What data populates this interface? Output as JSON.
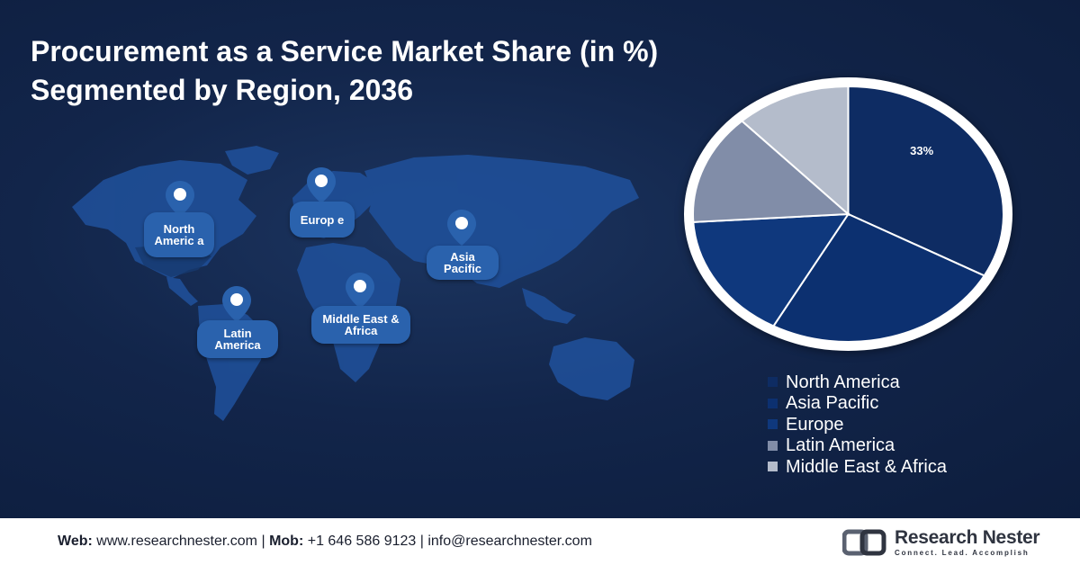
{
  "header": {
    "title_line1": "Procurement as a Service Market Share (in %)",
    "title_line2": "Segmented by Region, 2036"
  },
  "map": {
    "regions": [
      {
        "id": "north-america",
        "label": "North Americ a"
      },
      {
        "id": "europe",
        "label": "Europ e"
      },
      {
        "id": "asia-pacific",
        "label": "Asia Pacific"
      },
      {
        "id": "latin-america",
        "label": "Latin America"
      },
      {
        "id": "middle-east-africa",
        "label": "Middle East & Africa"
      }
    ]
  },
  "chart_data": {
    "type": "pie",
    "title": "Procurement as a Service Market Share (in %) Segmented by Region, 2036",
    "categories": [
      "North America",
      "Asia Pacific",
      "Europe",
      "Latin America",
      "Middle East & Africa"
    ],
    "values": [
      33,
      25,
      16,
      14,
      12
    ],
    "colors": [
      "#0e2c63",
      "#0c3070",
      "#0f387d",
      "#818da8",
      "#b4bccb"
    ],
    "data_labels": [
      "33%",
      "",
      "",
      "",
      ""
    ],
    "legend_placement": "bottom-right"
  },
  "footer": {
    "web_label": "Web:",
    "web_value": "www.researchnester.com",
    "mob_label": "Mob:",
    "mob_value": "+1 646 586 9123",
    "email": "info@researchnester.com",
    "separator": "|",
    "logo_name": "Research Nester",
    "logo_tagline": "Connect. Lead. Accomplish"
  }
}
